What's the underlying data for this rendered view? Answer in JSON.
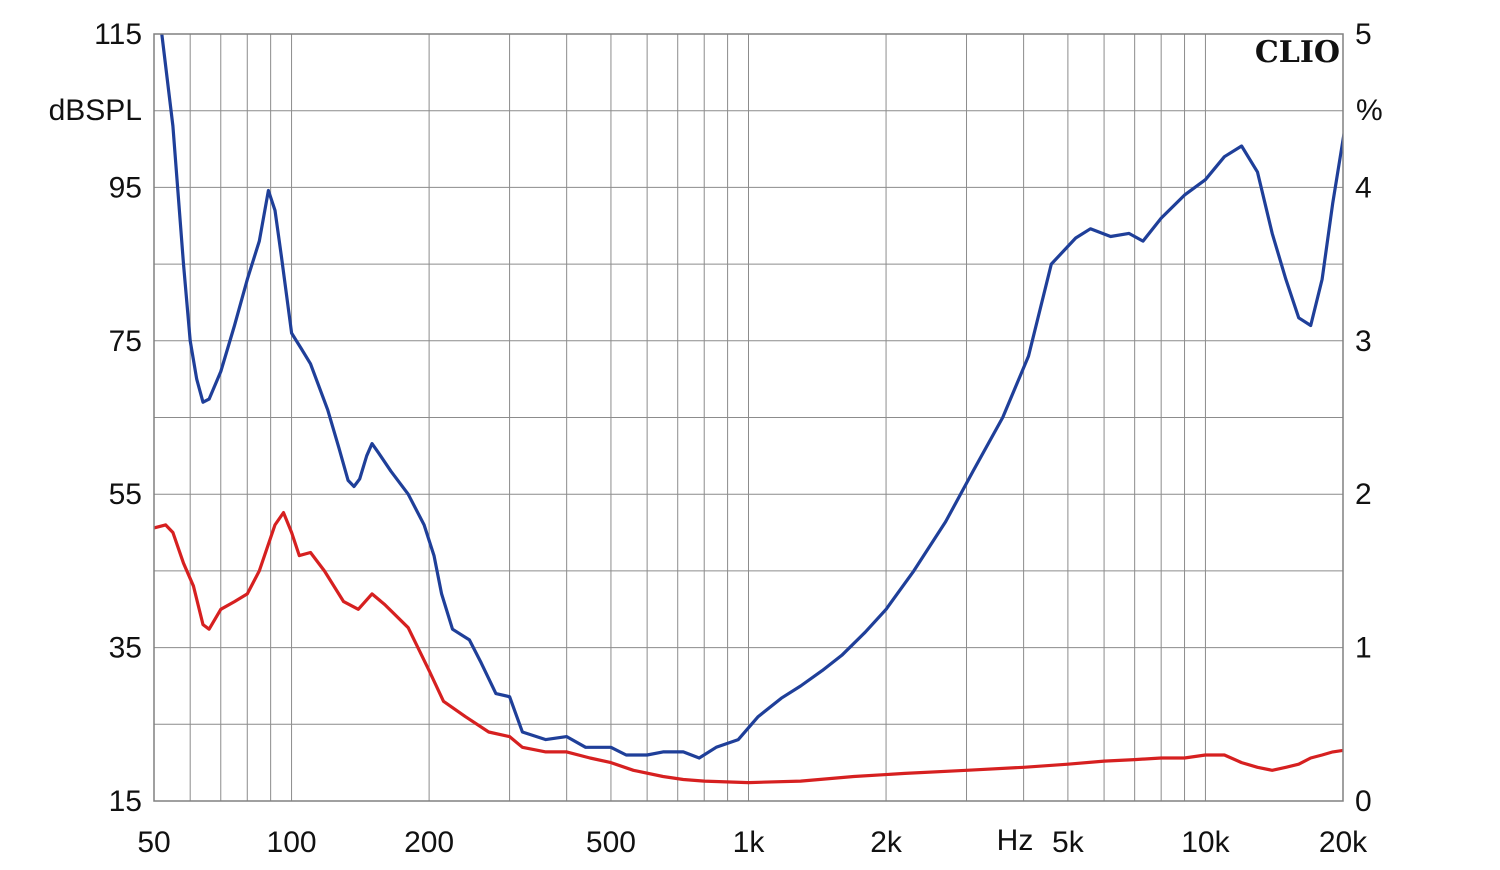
{
  "chart_data": {
    "type": "line",
    "title": "",
    "brand": "CLIO",
    "x_scale": "log",
    "xlim": [
      50,
      20000
    ],
    "x_tick_labels": [
      {
        "value": 50,
        "label": "50"
      },
      {
        "value": 100,
        "label": "100"
      },
      {
        "value": 200,
        "label": "200"
      },
      {
        "value": 500,
        "label": "500"
      },
      {
        "value": 1000,
        "label": "1k"
      },
      {
        "value": 2000,
        "label": "2k"
      },
      {
        "value": 5000,
        "label": "5k"
      },
      {
        "value": 10000,
        "label": "10k"
      },
      {
        "value": 20000,
        "label": "20k"
      }
    ],
    "x_unit_label": "Hz",
    "y_left": {
      "unit_label": "dBSPL",
      "lim": [
        15,
        115
      ],
      "ticks": [
        "15",
        "35",
        "55",
        "75",
        "95",
        "115"
      ]
    },
    "y_right": {
      "unit_label": "%",
      "lim": [
        0,
        5
      ],
      "ticks": [
        "0",
        "1",
        "2",
        "3",
        "4",
        "5"
      ]
    },
    "grid": true,
    "series": [
      {
        "color": "#1f3f99",
        "axis": "right",
        "points": [
          [
            52,
            5.0
          ],
          [
            55,
            4.4
          ],
          [
            58,
            3.5
          ],
          [
            60,
            3.0
          ],
          [
            62,
            2.75
          ],
          [
            64,
            2.6
          ],
          [
            66,
            2.62
          ],
          [
            70,
            2.8
          ],
          [
            75,
            3.1
          ],
          [
            80,
            3.4
          ],
          [
            85,
            3.65
          ],
          [
            89,
            3.98
          ],
          [
            92,
            3.85
          ],
          [
            95,
            3.55
          ],
          [
            100,
            3.05
          ],
          [
            105,
            2.95
          ],
          [
            110,
            2.85
          ],
          [
            120,
            2.55
          ],
          [
            127,
            2.3
          ],
          [
            133,
            2.09
          ],
          [
            137,
            2.05
          ],
          [
            141,
            2.1
          ],
          [
            146,
            2.25
          ],
          [
            150,
            2.33
          ],
          [
            155,
            2.27
          ],
          [
            165,
            2.15
          ],
          [
            180,
            2.0
          ],
          [
            195,
            1.8
          ],
          [
            205,
            1.6
          ],
          [
            213,
            1.35
          ],
          [
            225,
            1.12
          ],
          [
            245,
            1.05
          ],
          [
            260,
            0.9
          ],
          [
            280,
            0.7
          ],
          [
            300,
            0.68
          ],
          [
            320,
            0.45
          ],
          [
            360,
            0.4
          ],
          [
            400,
            0.42
          ],
          [
            440,
            0.35
          ],
          [
            500,
            0.35
          ],
          [
            540,
            0.3
          ],
          [
            600,
            0.3
          ],
          [
            650,
            0.32
          ],
          [
            720,
            0.32
          ],
          [
            780,
            0.28
          ],
          [
            850,
            0.35
          ],
          [
            950,
            0.4
          ],
          [
            1050,
            0.55
          ],
          [
            1180,
            0.67
          ],
          [
            1300,
            0.75
          ],
          [
            1450,
            0.85
          ],
          [
            1600,
            0.95
          ],
          [
            1800,
            1.1
          ],
          [
            2000,
            1.25
          ],
          [
            2300,
            1.5
          ],
          [
            2700,
            1.82
          ],
          [
            3100,
            2.15
          ],
          [
            3600,
            2.5
          ],
          [
            4100,
            2.9
          ],
          [
            4600,
            3.5
          ],
          [
            5200,
            3.67
          ],
          [
            5600,
            3.73
          ],
          [
            6200,
            3.68
          ],
          [
            6800,
            3.7
          ],
          [
            7300,
            3.65
          ],
          [
            8000,
            3.8
          ],
          [
            9000,
            3.95
          ],
          [
            10000,
            4.05
          ],
          [
            11000,
            4.2
          ],
          [
            12000,
            4.27
          ],
          [
            13000,
            4.1
          ],
          [
            14000,
            3.7
          ],
          [
            15000,
            3.4
          ],
          [
            16000,
            3.15
          ],
          [
            17000,
            3.1
          ],
          [
            18000,
            3.4
          ],
          [
            19000,
            3.9
          ],
          [
            21000,
            4.7
          ]
        ]
      },
      {
        "color": "#d62020",
        "axis": "right",
        "points": [
          [
            50,
            1.78
          ],
          [
            53,
            1.8
          ],
          [
            55,
            1.75
          ],
          [
            58,
            1.55
          ],
          [
            61,
            1.4
          ],
          [
            64,
            1.15
          ],
          [
            66,
            1.12
          ],
          [
            70,
            1.25
          ],
          [
            75,
            1.3
          ],
          [
            80,
            1.35
          ],
          [
            85,
            1.5
          ],
          [
            92,
            1.8
          ],
          [
            96,
            1.88
          ],
          [
            100,
            1.75
          ],
          [
            104,
            1.6
          ],
          [
            110,
            1.62
          ],
          [
            118,
            1.5
          ],
          [
            130,
            1.3
          ],
          [
            140,
            1.25
          ],
          [
            150,
            1.35
          ],
          [
            160,
            1.28
          ],
          [
            180,
            1.13
          ],
          [
            200,
            0.85
          ],
          [
            215,
            0.65
          ],
          [
            240,
            0.55
          ],
          [
            270,
            0.45
          ],
          [
            300,
            0.42
          ],
          [
            320,
            0.35
          ],
          [
            360,
            0.32
          ],
          [
            400,
            0.32
          ],
          [
            450,
            0.28
          ],
          [
            500,
            0.25
          ],
          [
            560,
            0.2
          ],
          [
            650,
            0.16
          ],
          [
            720,
            0.14
          ],
          [
            800,
            0.13
          ],
          [
            1000,
            0.12
          ],
          [
            1300,
            0.13
          ],
          [
            1700,
            0.16
          ],
          [
            2200,
            0.18
          ],
          [
            3000,
            0.2
          ],
          [
            4000,
            0.22
          ],
          [
            5000,
            0.24
          ],
          [
            6000,
            0.26
          ],
          [
            7000,
            0.27
          ],
          [
            8000,
            0.28
          ],
          [
            9000,
            0.28
          ],
          [
            10000,
            0.3
          ],
          [
            11000,
            0.3
          ],
          [
            12000,
            0.25
          ],
          [
            13000,
            0.22
          ],
          [
            14000,
            0.2
          ],
          [
            15000,
            0.22
          ],
          [
            16000,
            0.24
          ],
          [
            17000,
            0.28
          ],
          [
            18000,
            0.3
          ],
          [
            19000,
            0.32
          ],
          [
            20000,
            0.33
          ]
        ]
      }
    ]
  }
}
